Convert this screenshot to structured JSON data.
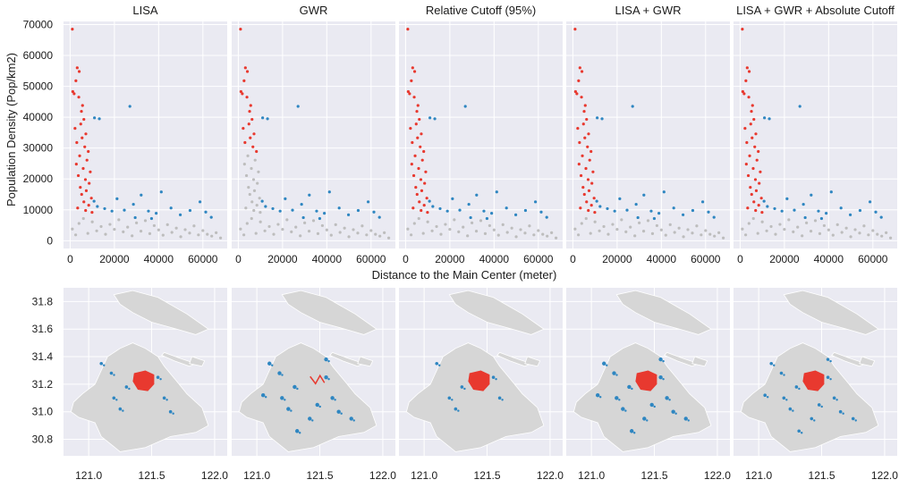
{
  "figure": {
    "shared_xlabel": "Distance to the Main Center (meter)",
    "shared_ylabel": "Population Density (Pop/km2)"
  },
  "colors": {
    "background_panel": "#eaeaf2",
    "grid": "#ffffff",
    "core": "#e8392f",
    "subcenter": "#2e86c1",
    "other": "#bdbdbd",
    "city_shape": "#d6d6d6"
  },
  "chart_data": [
    {
      "type": "scatter",
      "row": "top",
      "panels": [
        "LISA",
        "GWR",
        "Relative Cutoff (95%)",
        "LISA + GWR",
        "LISA + GWR + Absolute Cutoff"
      ],
      "x_ticks": [
        "0",
        "20000",
        "40000",
        "60000"
      ],
      "y_ticks": [
        "0",
        "10000",
        "20000",
        "30000",
        "40000",
        "50000",
        "60000",
        "70000"
      ],
      "xlim": [
        -3000,
        71000
      ],
      "ylim": [
        -2500,
        71000
      ],
      "grid": true,
      "series": [
        {
          "color": "core",
          "points": [
            [
              1000,
              68500
            ],
            [
              3200,
              56000
            ],
            [
              4100,
              54800
            ],
            [
              2600,
              51800
            ],
            [
              1200,
              48300
            ],
            [
              1800,
              47600
            ],
            [
              3900,
              46500
            ],
            [
              5600,
              43800
            ],
            [
              5100,
              41900
            ],
            [
              6200,
              39300
            ],
            [
              4800,
              37800
            ],
            [
              2200,
              36400
            ],
            [
              7100,
              34600
            ],
            [
              5400,
              33300
            ],
            [
              3000,
              31800
            ],
            [
              6600,
              30400
            ],
            [
              8200,
              28900
            ],
            [
              4300,
              27500
            ],
            [
              7600,
              26100
            ],
            [
              2800,
              24800
            ],
            [
              5900,
              23400
            ],
            [
              9100,
              22300
            ],
            [
              3700,
              21100
            ],
            [
              6900,
              19800
            ],
            [
              8600,
              18600
            ],
            [
              4600,
              17300
            ],
            [
              7300,
              16200
            ],
            [
              5200,
              15000
            ],
            [
              9600,
              13800
            ],
            [
              6200,
              12600
            ],
            [
              8400,
              11500
            ],
            [
              3400,
              10600
            ],
            [
              7000,
              9800
            ],
            [
              9900,
              9200
            ]
          ]
        },
        {
          "color": "subcenter",
          "points": [
            [
              11000,
              39800
            ],
            [
              13200,
              39500
            ],
            [
              27000,
              43500
            ],
            [
              10800,
              12800
            ],
            [
              12300,
              11100
            ],
            [
              15600,
              10400
            ],
            [
              18900,
              9600
            ],
            [
              21200,
              13600
            ],
            [
              24500,
              9900
            ],
            [
              28600,
              11800
            ],
            [
              32100,
              14800
            ],
            [
              35400,
              9600
            ],
            [
              38900,
              8900
            ],
            [
              41200,
              15800
            ],
            [
              45600,
              10600
            ],
            [
              49800,
              8400
            ],
            [
              54200,
              9800
            ],
            [
              58700,
              12600
            ],
            [
              61300,
              9300
            ],
            [
              63800,
              7600
            ],
            [
              29400,
              7500
            ],
            [
              36800,
              7200
            ]
          ]
        },
        {
          "color": "other",
          "points": [
            [
              1000,
              3800
            ],
            [
              2500,
              1900
            ],
            [
              4000,
              5600
            ],
            [
              6000,
              7200
            ],
            [
              8000,
              2400
            ],
            [
              10000,
              6100
            ],
            [
              12000,
              3200
            ],
            [
              14000,
              4600
            ],
            [
              16000,
              2100
            ],
            [
              18000,
              5300
            ],
            [
              20000,
              3700
            ],
            [
              22000,
              6800
            ],
            [
              24000,
              2900
            ],
            [
              26000,
              4400
            ],
            [
              28000,
              1600
            ],
            [
              30000,
              5800
            ],
            [
              32000,
              3100
            ],
            [
              34000,
              6500
            ],
            [
              36000,
              2300
            ],
            [
              38000,
              4900
            ],
            [
              40000,
              3500
            ],
            [
              42000,
              1800
            ],
            [
              44000,
              5200
            ],
            [
              46000,
              2700
            ],
            [
              48000,
              4100
            ],
            [
              50000,
              1300
            ],
            [
              52000,
              3600
            ],
            [
              54000,
              2500
            ],
            [
              56000,
              4800
            ],
            [
              58000,
              1900
            ],
            [
              60000,
              3300
            ],
            [
              62000,
              2100
            ],
            [
              64000,
              1500
            ],
            [
              66000,
              2600
            ],
            [
              68000,
              900
            ]
          ]
        }
      ]
    },
    {
      "type": "map",
      "row": "bottom",
      "x_ticks": [
        "121.0",
        "121.5",
        "122.0"
      ],
      "y_ticks": [
        "31.8",
        "31.6",
        "31.4",
        "31.2",
        "31.0",
        "30.8"
      ],
      "xlim": [
        120.8,
        122.1
      ],
      "ylim": [
        30.68,
        31.9
      ],
      "grid": true
    }
  ]
}
